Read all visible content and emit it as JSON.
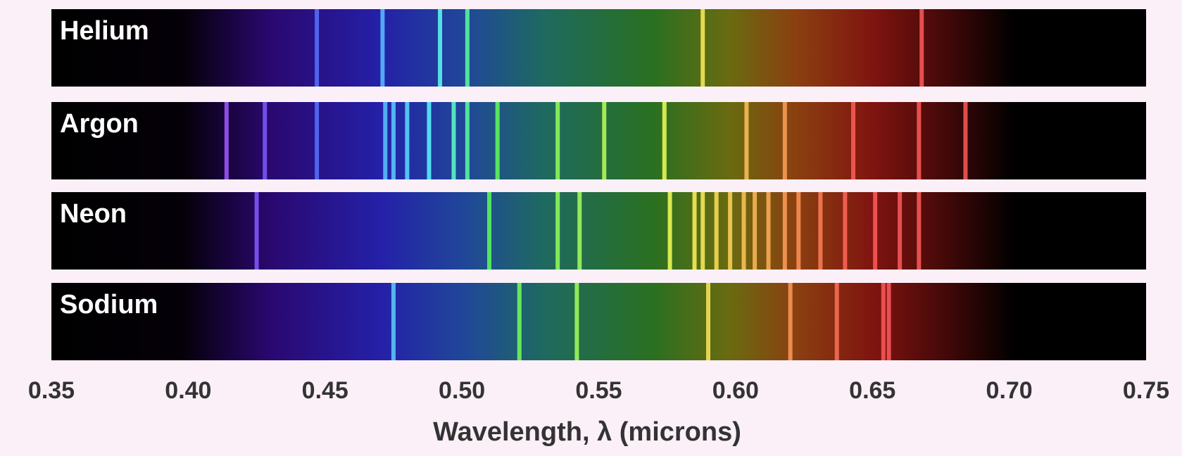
{
  "chart_data": {
    "type": "spectrum",
    "xlabel": "Wavelength, λ (microns)",
    "xlim": [
      0.35,
      0.75
    ],
    "xticks": [
      0.35,
      {
        "value": 0.4,
        "label": "0.40"
      },
      0.45,
      {
        "value": 0.5,
        "label": "0.50"
      },
      0.55,
      {
        "value": 0.6,
        "label": "0.60"
      },
      0.65,
      {
        "value": 0.7,
        "label": "0.70"
      },
      0.75
    ],
    "series": [
      {
        "name": "Helium",
        "values": [
          0.447,
          0.471,
          0.492,
          0.502,
          0.588,
          0.668
        ]
      },
      {
        "name": "Argon",
        "values": [
          0.414,
          0.428,
          0.447,
          0.472,
          0.475,
          0.48,
          0.488,
          0.497,
          0.502,
          0.513,
          0.535,
          0.552,
          0.574,
          0.604,
          0.618,
          0.643,
          0.667,
          0.684
        ]
      },
      {
        "name": "Neon",
        "values": [
          0.425,
          0.51,
          0.535,
          0.543,
          0.576,
          0.585,
          0.588,
          0.593,
          0.598,
          0.603,
          0.607,
          0.612,
          0.618,
          0.623,
          0.631,
          0.64,
          0.651,
          0.66,
          0.667
        ]
      },
      {
        "name": "Sodium",
        "values": [
          0.475,
          0.521,
          0.542,
          0.59,
          0.62,
          0.637,
          0.654,
          0.656
        ]
      }
    ]
  }
}
